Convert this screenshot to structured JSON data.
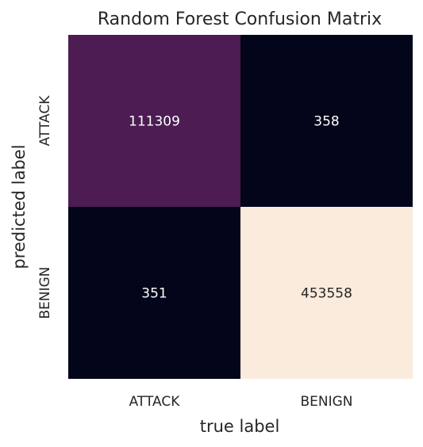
{
  "chart_data": {
    "type": "heatmap",
    "title": "Random Forest Confusion Matrix",
    "xlabel": "true label",
    "ylabel": "predicted label",
    "x_categories": [
      "ATTACK",
      "BENIGN"
    ],
    "y_categories": [
      "ATTACK",
      "BENIGN"
    ],
    "values": [
      [
        111309,
        358
      ],
      [
        351,
        453558
      ]
    ],
    "colorbar": false,
    "colormap": "rocket",
    "colors": {
      "low": "#03051a",
      "high": "#faebdd",
      "dark_text": "#262626",
      "light_text": "#ffffff"
    }
  }
}
